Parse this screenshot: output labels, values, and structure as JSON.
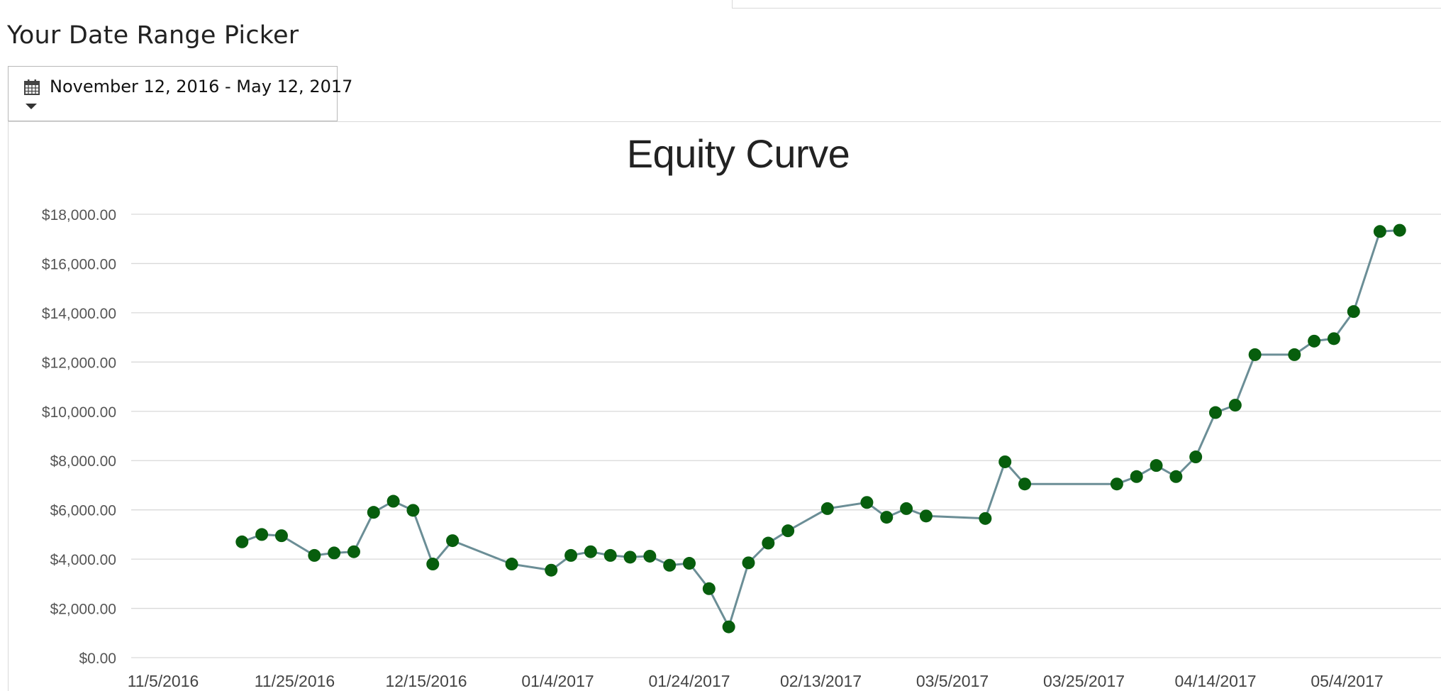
{
  "picker": {
    "heading": "Your Date Range Picker",
    "value": "November 12, 2016 - May 12, 2017",
    "icon": "calendar-icon",
    "caret_icon": "caret-down-icon"
  },
  "colors": {
    "line": "#6b8e96",
    "marker": "#075e0d",
    "grid": "#d9d9d9"
  },
  "chart_data": {
    "type": "line",
    "title": "Equity Curve",
    "xlabel": "",
    "ylabel": "",
    "grid": true,
    "ylim": [
      0,
      18000
    ],
    "x_range": [
      "2016-11-05",
      "2017-05-12"
    ],
    "y_ticks": [
      "$0.00",
      "$2,000.00",
      "$4,000.00",
      "$6,000.00",
      "$8,000.00",
      "$10,000.00",
      "$12,000.00",
      "$14,000.00",
      "$16,000.00",
      "$18,000.00"
    ],
    "x_ticks": [
      {
        "label": "11/5/2016",
        "date": "2016-11-05"
      },
      {
        "label": "11/25/2016",
        "date": "2016-11-25"
      },
      {
        "label": "12/15/2016",
        "date": "2016-12-15"
      },
      {
        "label": "01/4/2017",
        "date": "2017-01-04"
      },
      {
        "label": "01/24/2017",
        "date": "2017-01-24"
      },
      {
        "label": "02/13/2017",
        "date": "2017-02-13"
      },
      {
        "label": "03/5/2017",
        "date": "2017-03-05"
      },
      {
        "label": "03/25/2017",
        "date": "2017-03-25"
      },
      {
        "label": "04/14/2017",
        "date": "2017-04-14"
      },
      {
        "label": "05/4/2017",
        "date": "2017-05-04"
      }
    ],
    "series": [
      {
        "points": [
          [
            "2016-11-17",
            4700
          ],
          [
            "2016-11-20",
            5000
          ],
          [
            "2016-11-23",
            4950
          ],
          [
            "2016-11-28",
            4150
          ],
          [
            "2016-12-01",
            4250
          ],
          [
            "2016-12-04",
            4300
          ],
          [
            "2016-12-07",
            5900
          ],
          [
            "2016-12-10",
            6350
          ],
          [
            "2016-12-13",
            5980
          ],
          [
            "2016-12-16",
            3800
          ],
          [
            "2016-12-19",
            4750
          ],
          [
            "2016-12-28",
            3800
          ],
          [
            "2017-01-03",
            3550
          ],
          [
            "2017-01-06",
            4150
          ],
          [
            "2017-01-09",
            4300
          ],
          [
            "2017-01-12",
            4150
          ],
          [
            "2017-01-15",
            4080
          ],
          [
            "2017-01-18",
            4120
          ],
          [
            "2017-01-21",
            3750
          ],
          [
            "2017-01-24",
            3830
          ],
          [
            "2017-01-27",
            2800
          ],
          [
            "2017-01-30",
            1250
          ],
          [
            "2017-02-02",
            3850
          ],
          [
            "2017-02-05",
            4650
          ],
          [
            "2017-02-08",
            5150
          ],
          [
            "2017-02-14",
            6050
          ],
          [
            "2017-02-20",
            6300
          ],
          [
            "2017-02-23",
            5700
          ],
          [
            "2017-02-26",
            6050
          ],
          [
            "2017-03-01",
            5750
          ],
          [
            "2017-03-10",
            5650
          ],
          [
            "2017-03-13",
            7950
          ],
          [
            "2017-03-16",
            7050
          ],
          [
            "2017-03-30",
            7050
          ],
          [
            "2017-04-02",
            7350
          ],
          [
            "2017-04-05",
            7800
          ],
          [
            "2017-04-08",
            7350
          ],
          [
            "2017-04-11",
            8150
          ],
          [
            "2017-04-14",
            9950
          ],
          [
            "2017-04-17",
            10250
          ],
          [
            "2017-04-20",
            12300
          ],
          [
            "2017-04-26",
            12300
          ],
          [
            "2017-04-29",
            12850
          ],
          [
            "2017-05-02",
            12950
          ],
          [
            "2017-05-05",
            14050
          ],
          [
            "2017-05-09",
            17300
          ],
          [
            "2017-05-12",
            17350
          ]
        ]
      }
    ]
  }
}
